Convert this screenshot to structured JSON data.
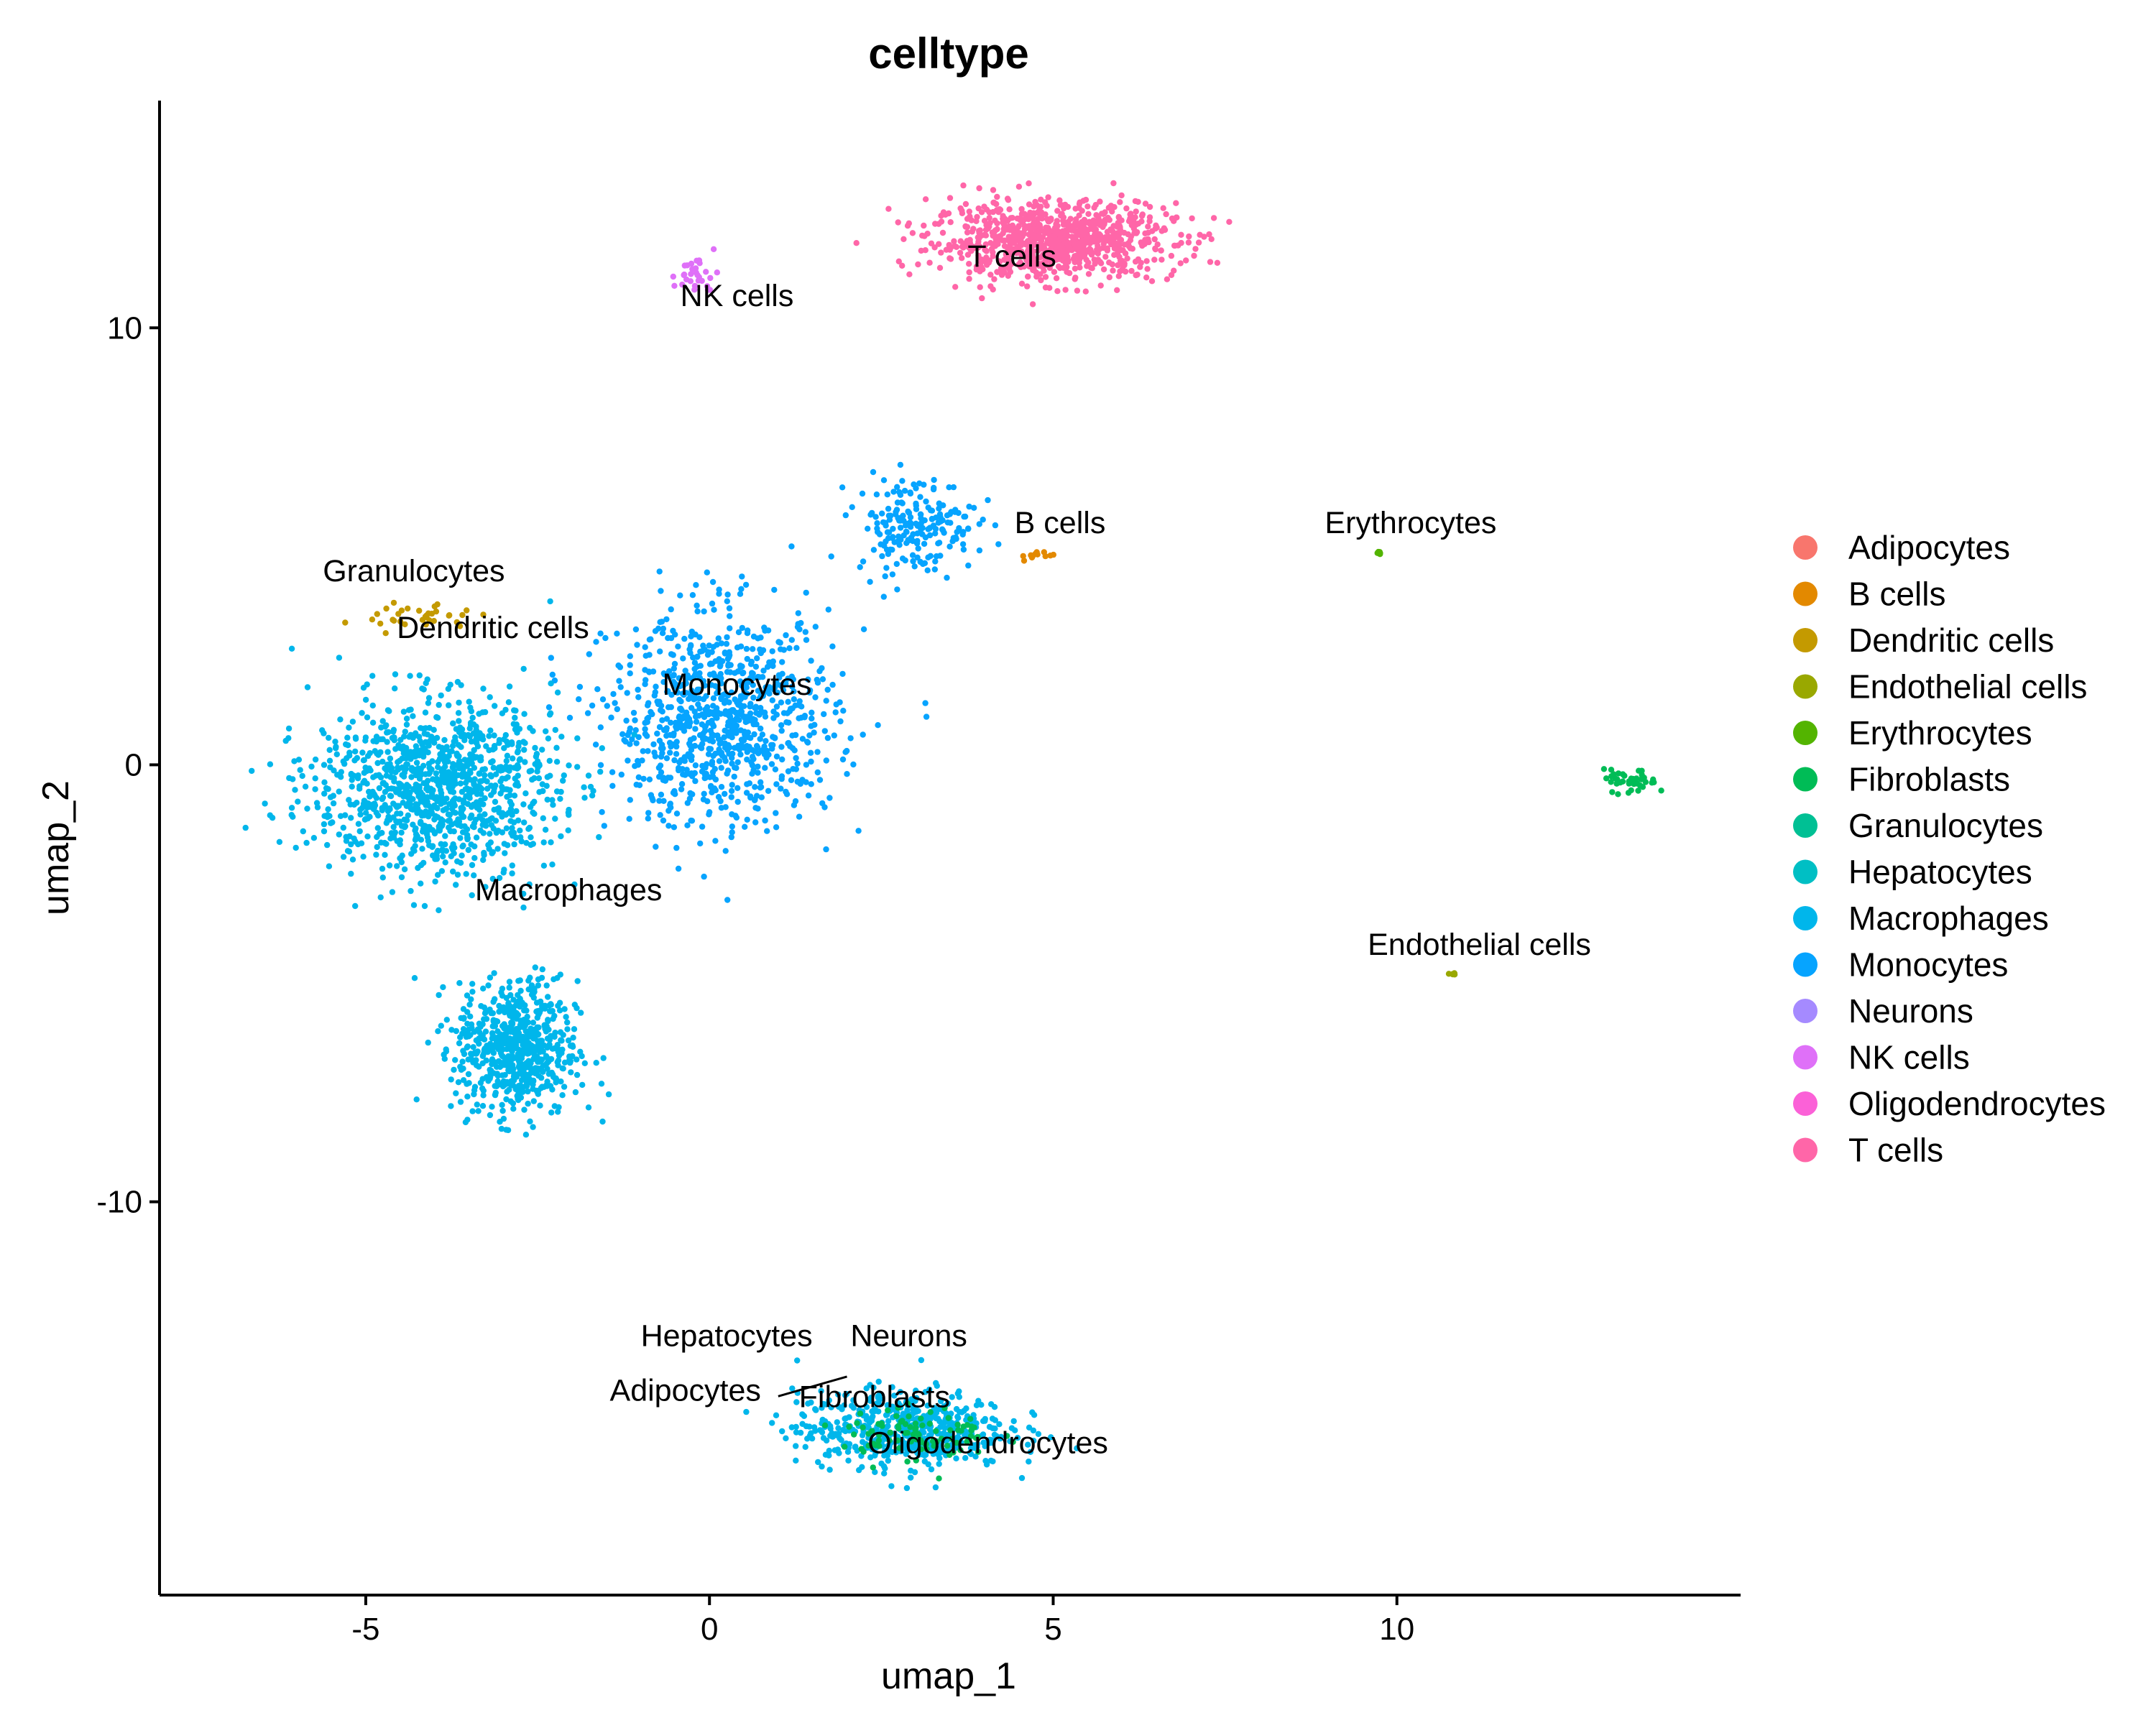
{
  "chart_data": {
    "type": "scatter",
    "title": "celltype",
    "xlabel": "umap_1",
    "ylabel": "umap_2",
    "xlim": [
      -8,
      15
    ],
    "ylim": [
      -19,
      15.2
    ],
    "x_ticks": [
      -5,
      0,
      5,
      10
    ],
    "x_tick_labels": [
      "-5",
      "0",
      "5",
      "10"
    ],
    "y_ticks": [
      -10,
      0,
      10
    ],
    "y_tick_labels": [
      "-10",
      "0",
      "10"
    ],
    "grid": false,
    "legend_position": "right",
    "legend": [
      {
        "name": "Adipocytes",
        "color": "#F8766D"
      },
      {
        "name": "B cells",
        "color": "#E38900"
      },
      {
        "name": "Dendritic cells",
        "color": "#C49A00"
      },
      {
        "name": "Endothelial cells",
        "color": "#99A800"
      },
      {
        "name": "Erythrocytes",
        "color": "#53B400"
      },
      {
        "name": "Fibroblasts",
        "color": "#00BC56"
      },
      {
        "name": "Granulocytes",
        "color": "#00C094"
      },
      {
        "name": "Hepatocytes",
        "color": "#00BFC4"
      },
      {
        "name": "Macrophages",
        "color": "#00B6EB"
      },
      {
        "name": "Monocytes",
        "color": "#06A4FF"
      },
      {
        "name": "Neurons",
        "color": "#A58AFF"
      },
      {
        "name": "NK cells",
        "color": "#DF70F8"
      },
      {
        "name": "Oligodendrocytes",
        "color": "#FB61D7"
      },
      {
        "name": "T cells",
        "color": "#FF66A8"
      }
    ],
    "clusters": [
      {
        "celltype": "T cells",
        "center": [
          5.0,
          12.0
        ],
        "spread": [
          1.6,
          0.8
        ],
        "n": 900
      },
      {
        "celltype": "Monocytes",
        "center": [
          0.2,
          1.0
        ],
        "spread": [
          1.5,
          2.2
        ],
        "n": 900
      },
      {
        "celltype": "Macrophages",
        "center": [
          -4.0,
          -0.5
        ],
        "spread": [
          1.6,
          1.8
        ],
        "n": 1100
      },
      {
        "celltype": "Macrophages",
        "center": [
          -2.8,
          -6.5
        ],
        "spread": [
          0.8,
          1.4
        ],
        "n": 650
      },
      {
        "celltype": "Monocytes",
        "center": [
          3.0,
          5.5
        ],
        "spread": [
          0.8,
          1.0
        ],
        "n": 200
      },
      {
        "celltype": "NK cells",
        "center": [
          -0.2,
          11.2
        ],
        "spread": [
          0.3,
          0.4
        ],
        "n": 30
      },
      {
        "celltype": "Macrophages",
        "center": [
          2.8,
          -15.2
        ],
        "spread": [
          1.4,
          0.8
        ],
        "n": 550
      },
      {
        "celltype": "Fibroblasts",
        "center": [
          3.0,
          -15.3
        ],
        "spread": [
          1.0,
          0.6
        ],
        "n": 90
      },
      {
        "celltype": "Fibroblasts",
        "center": [
          13.4,
          -0.4
        ],
        "spread": [
          0.35,
          0.25
        ],
        "n": 40
      },
      {
        "celltype": "Erythrocytes",
        "center": [
          9.75,
          4.85
        ],
        "spread": [
          0.05,
          0.05
        ],
        "n": 8
      },
      {
        "celltype": "Endothelial cells",
        "center": [
          10.8,
          -4.8
        ],
        "spread": [
          0.05,
          0.05
        ],
        "n": 6
      },
      {
        "celltype": "Dendritic cells",
        "center": [
          -4.2,
          3.4
        ],
        "spread": [
          0.7,
          0.3
        ],
        "n": 35
      },
      {
        "celltype": "B cells",
        "center": [
          4.8,
          4.8
        ],
        "spread": [
          0.3,
          0.1
        ],
        "n": 12
      }
    ],
    "cluster_labels": [
      {
        "text": "T cells",
        "x": 4.4,
        "y": 11.4
      },
      {
        "text": "NK cells",
        "x": 0.4,
        "y": 10.5
      },
      {
        "text": "B cells",
        "x": 5.1,
        "y": 5.3
      },
      {
        "text": "Erythrocytes",
        "x": 10.2,
        "y": 5.3
      },
      {
        "text": "Granulocytes",
        "x": -4.3,
        "y": 4.2
      },
      {
        "text": "Dendritic cells",
        "x": -3.15,
        "y": 2.9
      },
      {
        "text": "Monocytes",
        "x": 0.4,
        "y": 1.6
      },
      {
        "text": "Macrophages",
        "x": -2.05,
        "y": -3.1
      },
      {
        "text": "Endothelial cells",
        "x": 11.2,
        "y": -4.35
      },
      {
        "text": "Hepatocytes",
        "x": 0.25,
        "y": -13.3
      },
      {
        "text": "Neurons",
        "x": 2.9,
        "y": -13.3
      },
      {
        "text": "Adipocytes",
        "x": -0.35,
        "y": -14.55
      },
      {
        "text": "Fibroblasts",
        "x": 2.4,
        "y": -14.7
      },
      {
        "text": "Oligodendrocytes",
        "x": 4.05,
        "y": -15.75
      }
    ]
  }
}
